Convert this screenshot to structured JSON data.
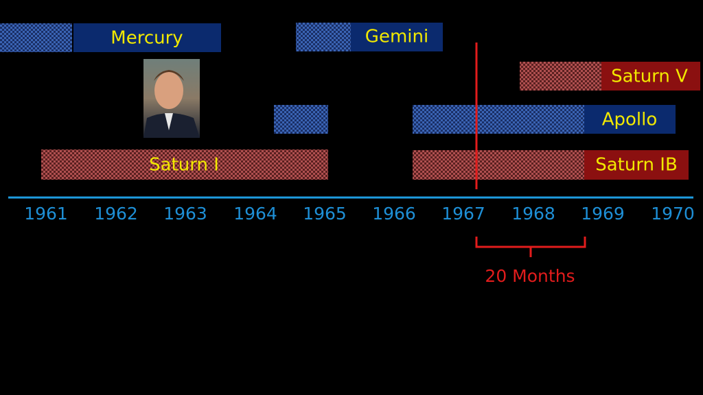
{
  "timeline": {
    "bars": [
      {
        "label": "Mercury"
      },
      {
        "label": "Gemini"
      },
      {
        "label": "Saturn V"
      },
      {
        "label": "Apollo"
      },
      {
        "label": "Saturn IB"
      },
      {
        "label": "Saturn I"
      }
    ],
    "years": [
      "1961",
      "1962",
      "1963",
      "1964",
      "1965",
      "1966",
      "1967",
      "1968",
      "1969",
      "1970"
    ],
    "annotation": "20 Months"
  }
}
